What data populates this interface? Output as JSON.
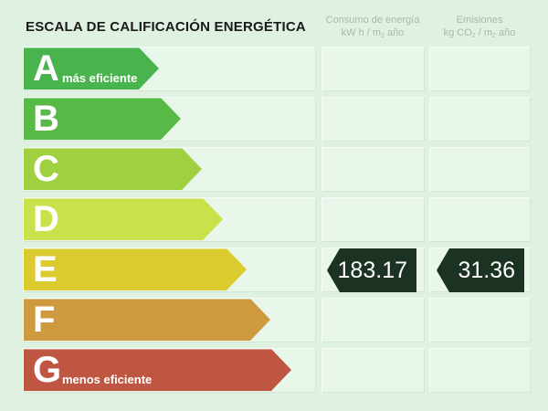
{
  "title": "ESCALA DE CALIFICACIÓN ENERGÉTICA",
  "columns": {
    "consumo": {
      "line1": "Consumo de energía",
      "line2_a": "kW h / m",
      "line2_sub": "2",
      "line2_b": " año"
    },
    "emisiones": {
      "line1": "Emisiones",
      "line2_a": "kg CO",
      "line2_sub": "2",
      "line2_a2": " / m",
      "line2_sub2": "2",
      "line2_b": " año"
    }
  },
  "ratings": [
    {
      "letter": "A",
      "caption": "más eficiente",
      "color": "#49b44d"
    },
    {
      "letter": "B",
      "caption": "",
      "color": "#58ba46"
    },
    {
      "letter": "C",
      "caption": "",
      "color": "#9ed040"
    },
    {
      "letter": "D",
      "caption": "",
      "color": "#c9e14a"
    },
    {
      "letter": "E",
      "caption": "",
      "color": "#dccb2f"
    },
    {
      "letter": "F",
      "caption": "",
      "color": "#cf9a3f"
    },
    {
      "letter": "G",
      "caption": "menos eficiente",
      "color": "#bf5642"
    }
  ],
  "current_rating": "E",
  "values": {
    "consumo": "183.17",
    "emisiones": "31.36"
  }
}
